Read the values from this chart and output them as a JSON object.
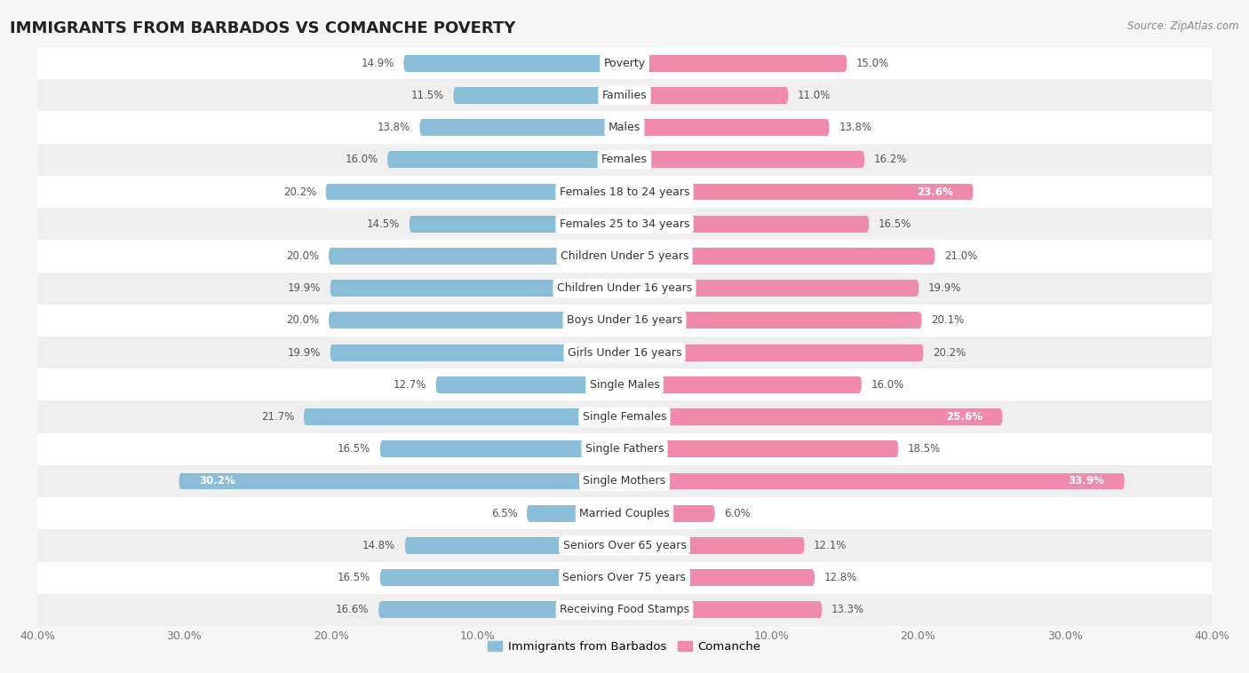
{
  "title": "IMMIGRANTS FROM BARBADOS VS COMANCHE POVERTY",
  "source": "Source: ZipAtlas.com",
  "categories": [
    "Poverty",
    "Families",
    "Males",
    "Females",
    "Females 18 to 24 years",
    "Females 25 to 34 years",
    "Children Under 5 years",
    "Children Under 16 years",
    "Boys Under 16 years",
    "Girls Under 16 years",
    "Single Males",
    "Single Females",
    "Single Fathers",
    "Single Mothers",
    "Married Couples",
    "Seniors Over 65 years",
    "Seniors Over 75 years",
    "Receiving Food Stamps"
  ],
  "barbados_values": [
    14.9,
    11.5,
    13.8,
    16.0,
    20.2,
    14.5,
    20.0,
    19.9,
    20.0,
    19.9,
    12.7,
    21.7,
    16.5,
    30.2,
    6.5,
    14.8,
    16.5,
    16.6
  ],
  "comanche_values": [
    15.0,
    11.0,
    13.8,
    16.2,
    23.6,
    16.5,
    21.0,
    19.9,
    20.1,
    20.2,
    16.0,
    25.6,
    18.5,
    33.9,
    6.0,
    12.1,
    12.8,
    13.3
  ],
  "barbados_color": "#89bdd8",
  "comanche_color": "#f08aaa",
  "row_bg_colors": [
    "#ffffff",
    "#efefef"
  ],
  "fig_bg": "#f5f5f5",
  "x_max": 40.0,
  "bar_height": 0.52,
  "label_fontsize": 9.0,
  "value_fontsize": 8.5,
  "title_fontsize": 13,
  "legend_labels": [
    "Immigrants from Barbados",
    "Comanche"
  ],
  "inside_label_white_threshold_comanche": 22.5,
  "inside_label_white_threshold_barbados": 28.0
}
